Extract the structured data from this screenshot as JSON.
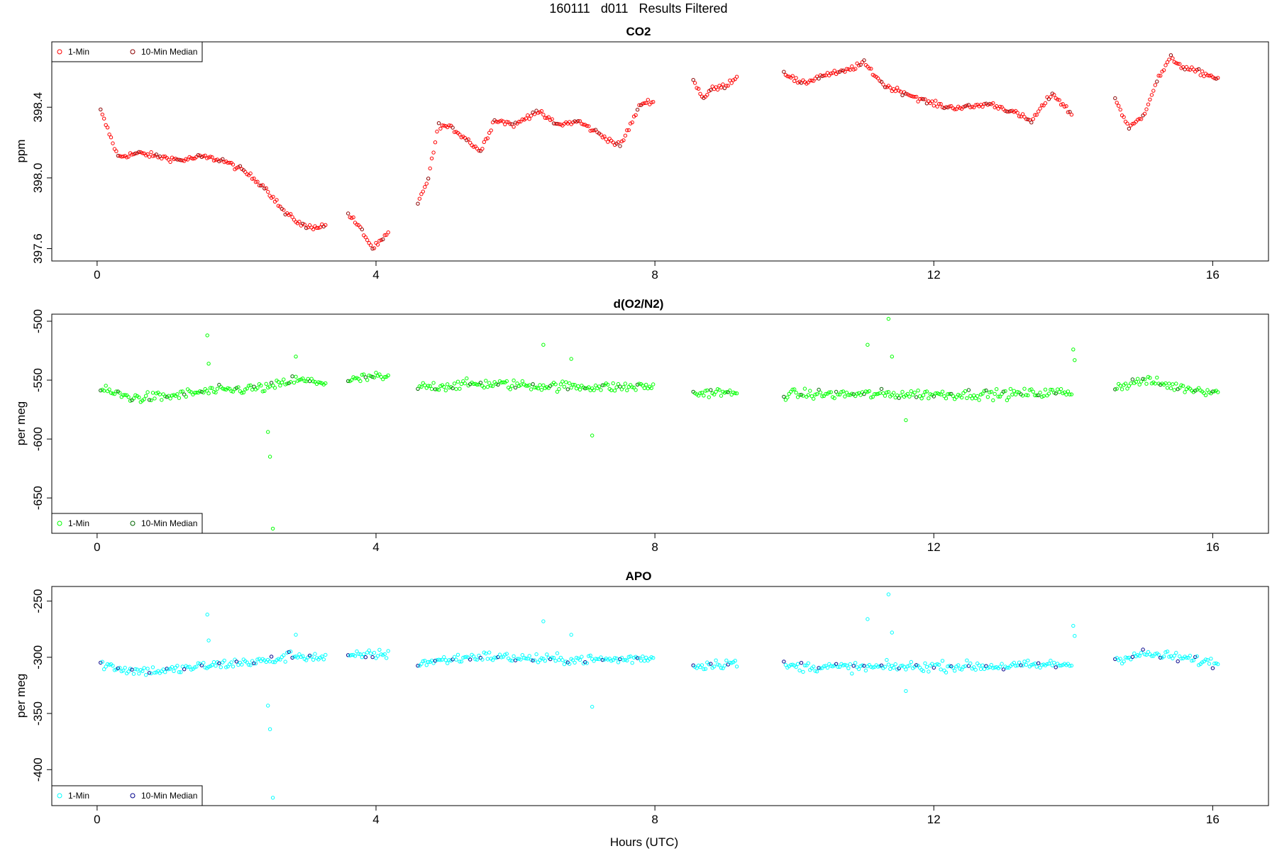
{
  "figure": {
    "title": "160111   d011   Results Filtered",
    "xlabel": "Hours (UTC)"
  },
  "chart_data": [
    {
      "type": "scatter",
      "title": "CO2",
      "ylabel": "ppm",
      "xlim": [
        -0.65,
        16.8
      ],
      "ylim": [
        397.53,
        398.77
      ],
      "xticks": [
        "0",
        "4",
        "8",
        "12",
        "16"
      ],
      "yticks": [
        "397.6",
        "398.0",
        "398.4"
      ],
      "y_tick_values": [
        397.6,
        398.0,
        398.4
      ],
      "legend": {
        "placement": "top-left",
        "entries": [
          "1-Min",
          "10-Min Median"
        ]
      },
      "colors": {
        "one_min": "#ff0000",
        "median": "#8b0000"
      },
      "segments": [
        {
          "x": [
            0.05,
            0.3,
            0.6,
            0.9,
            1.2,
            1.5,
            1.8,
            2.1,
            2.4,
            2.7,
            3.0,
            3.3
          ],
          "y": [
            398.38,
            398.12,
            398.14,
            398.12,
            398.1,
            398.12,
            398.1,
            398.04,
            397.95,
            397.8,
            397.72,
            397.73
          ]
        },
        {
          "x": [
            3.6,
            3.8,
            3.95,
            4.1,
            4.2
          ],
          "y": [
            397.8,
            397.7,
            397.6,
            397.65,
            397.7
          ]
        },
        {
          "x": [
            4.6,
            4.75,
            4.9,
            5.1,
            5.3,
            5.5,
            5.7,
            6.0,
            6.3,
            6.6,
            6.9,
            7.2,
            7.5,
            7.8,
            8.0
          ],
          "y": [
            397.85,
            398.0,
            398.3,
            398.28,
            398.22,
            398.15,
            398.33,
            398.3,
            398.38,
            398.3,
            398.32,
            398.25,
            398.18,
            398.42,
            398.44
          ]
        },
        {
          "x": [
            8.55,
            8.7,
            8.8,
            9.0,
            9.2
          ],
          "y": [
            398.55,
            398.45,
            398.5,
            398.52,
            398.58
          ]
        },
        {
          "x": [
            9.85,
            10.1,
            10.4,
            10.7,
            11.0,
            11.3,
            11.6,
            11.9,
            12.2,
            12.5,
            12.8,
            13.1,
            13.4,
            13.7,
            14.0
          ],
          "y": [
            398.6,
            398.53,
            398.58,
            398.6,
            398.65,
            398.52,
            398.48,
            398.43,
            398.4,
            398.4,
            398.42,
            398.38,
            398.32,
            398.48,
            398.35
          ]
        },
        {
          "x": [
            14.6,
            14.8,
            15.0,
            15.2,
            15.4,
            15.6,
            15.8,
            16.1
          ],
          "y": [
            398.45,
            398.28,
            398.35,
            398.55,
            398.68,
            398.62,
            398.6,
            398.56
          ]
        }
      ]
    },
    {
      "type": "scatter",
      "title": "d(O2/N2)",
      "ylabel": "per meg",
      "xlim": [
        -0.65,
        16.8
      ],
      "ylim": [
        -680,
        -494
      ],
      "xticks": [
        "0",
        "4",
        "8",
        "12",
        "16"
      ],
      "yticks": [
        "-650",
        "-600",
        "-550",
        "-500"
      ],
      "y_tick_values": [
        -650,
        -600,
        -550,
        -500
      ],
      "legend": {
        "placement": "bottom-left",
        "entries": [
          "1-Min",
          "10-Min Median"
        ]
      },
      "colors": {
        "one_min": "#00ff00",
        "median": "#006400"
      },
      "segments": [
        {
          "x": [
            0.05,
            0.5,
            1.0,
            1.5,
            2.0,
            2.5,
            2.8,
            3.3
          ],
          "y": [
            -558,
            -565,
            -564,
            -560,
            -558,
            -556,
            -550,
            -552
          ]
        },
        {
          "x": [
            3.6,
            3.95,
            4.2
          ],
          "y": [
            -551,
            -547,
            -549
          ]
        },
        {
          "x": [
            4.6,
            5.5,
            6.5,
            7.5,
            8.0
          ],
          "y": [
            -556,
            -553,
            -555,
            -556,
            -555
          ]
        },
        {
          "x": [
            8.55,
            8.8,
            9.2
          ],
          "y": [
            -562,
            -560,
            -562
          ]
        },
        {
          "x": [
            9.85,
            11.0,
            12.0,
            13.0,
            14.0
          ],
          "y": [
            -562,
            -562,
            -562,
            -562,
            -560
          ]
        },
        {
          "x": [
            14.6,
            15.0,
            15.5,
            16.1
          ],
          "y": [
            -556,
            -550,
            -556,
            -560
          ]
        }
      ],
      "outliers": [
        {
          "x": 1.58,
          "y": -512
        },
        {
          "x": 1.6,
          "y": -536
        },
        {
          "x": 2.45,
          "y": -594
        },
        {
          "x": 2.48,
          "y": -615
        },
        {
          "x": 2.52,
          "y": -676
        },
        {
          "x": 2.85,
          "y": -530
        },
        {
          "x": 6.4,
          "y": -520
        },
        {
          "x": 6.8,
          "y": -532
        },
        {
          "x": 7.1,
          "y": -597
        },
        {
          "x": 11.05,
          "y": -520
        },
        {
          "x": 11.35,
          "y": -498
        },
        {
          "x": 11.4,
          "y": -530
        },
        {
          "x": 11.6,
          "y": -584
        },
        {
          "x": 14.0,
          "y": -524
        },
        {
          "x": 14.02,
          "y": -533
        }
      ]
    },
    {
      "type": "scatter",
      "title": "APO",
      "ylabel": "per meg",
      "xlim": [
        -0.65,
        16.8
      ],
      "ylim": [
        -432,
        -237
      ],
      "xticks": [
        "0",
        "4",
        "8",
        "12",
        "16"
      ],
      "yticks": [
        "-400",
        "-350",
        "-300",
        "-250"
      ],
      "y_tick_values": [
        -400,
        -350,
        -300,
        -250
      ],
      "legend": {
        "placement": "bottom-left",
        "entries": [
          "1-Min",
          "10-Min Median"
        ]
      },
      "colors": {
        "one_min": "#00ffff",
        "median": "#00008b"
      },
      "segments": [
        {
          "x": [
            0.05,
            0.5,
            1.0,
            1.5,
            2.0,
            2.5,
            2.8,
            3.3
          ],
          "y": [
            -306,
            -312,
            -312,
            -308,
            -305,
            -303,
            -298,
            -301
          ]
        },
        {
          "x": [
            3.6,
            3.95,
            4.2
          ],
          "y": [
            -300,
            -297,
            -298
          ]
        },
        {
          "x": [
            4.6,
            5.5,
            6.5,
            7.5,
            8.0
          ],
          "y": [
            -305,
            -299,
            -302,
            -302,
            -300
          ]
        },
        {
          "x": [
            8.55,
            8.8,
            9.2
          ],
          "y": [
            -308,
            -306,
            -305
          ]
        },
        {
          "x": [
            9.85,
            11.0,
            12.0,
            13.0,
            14.0
          ],
          "y": [
            -308,
            -309,
            -308,
            -308,
            -306
          ]
        },
        {
          "x": [
            14.6,
            15.0,
            15.5,
            16.1
          ],
          "y": [
            -302,
            -297,
            -300,
            -306
          ]
        }
      ],
      "outliers": [
        {
          "x": 1.58,
          "y": -262
        },
        {
          "x": 1.6,
          "y": -285
        },
        {
          "x": 2.45,
          "y": -343
        },
        {
          "x": 2.48,
          "y": -364
        },
        {
          "x": 2.52,
          "y": -425
        },
        {
          "x": 2.85,
          "y": -280
        },
        {
          "x": 6.4,
          "y": -268
        },
        {
          "x": 6.8,
          "y": -280
        },
        {
          "x": 7.1,
          "y": -344
        },
        {
          "x": 11.05,
          "y": -266
        },
        {
          "x": 11.35,
          "y": -244
        },
        {
          "x": 11.4,
          "y": -278
        },
        {
          "x": 11.6,
          "y": -330
        },
        {
          "x": 14.0,
          "y": -272
        },
        {
          "x": 14.02,
          "y": -281
        }
      ]
    }
  ]
}
